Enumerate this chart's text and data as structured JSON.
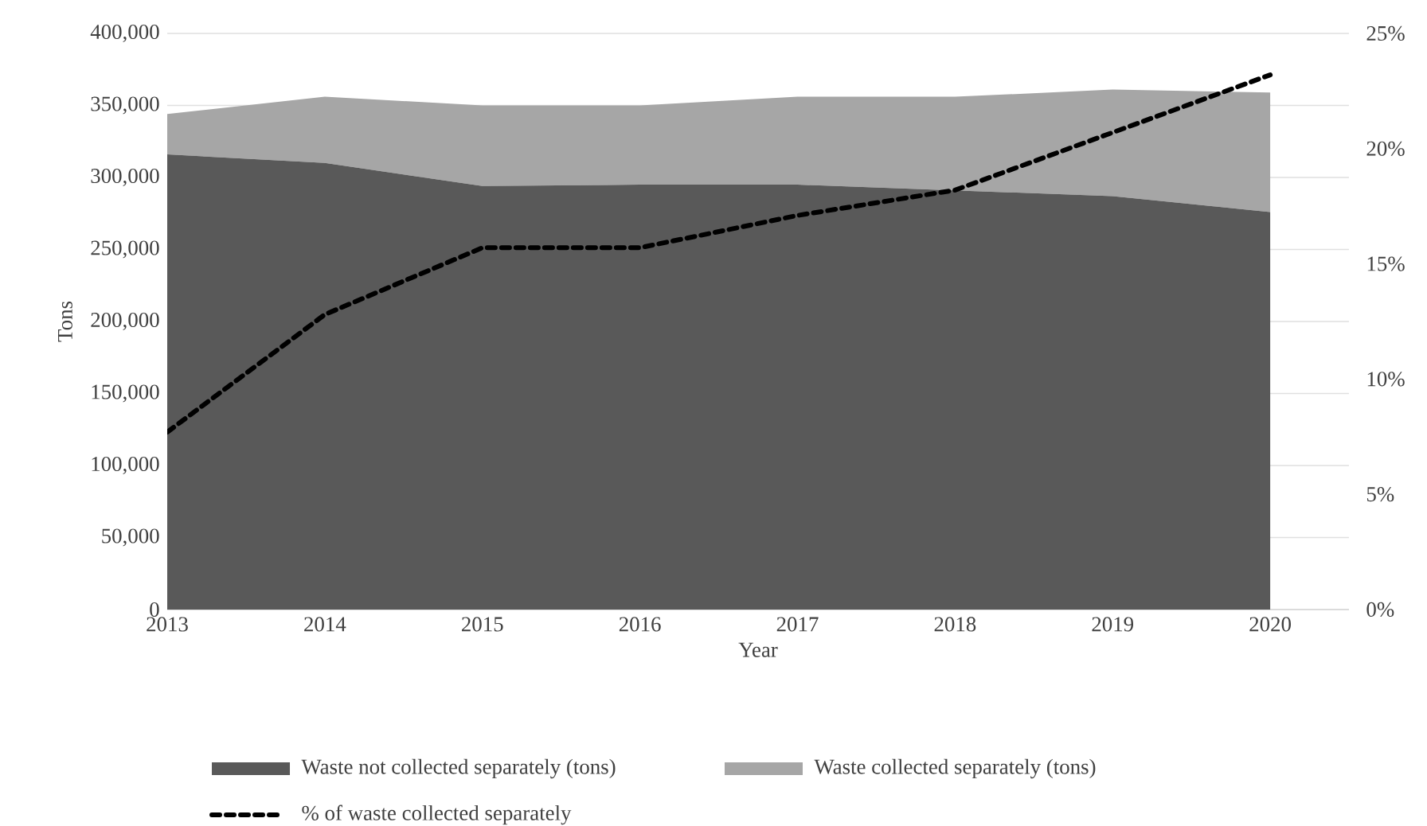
{
  "chart_data": {
    "type": "area",
    "stacked": true,
    "xlabel": "Year",
    "ylabel": "Tons",
    "categories": [
      "2013",
      "2014",
      "2015",
      "2016",
      "2017",
      "2018",
      "2019",
      "2020"
    ],
    "series": [
      {
        "name": "Waste not collected separately (tons)",
        "color": "#595959",
        "values": [
          316000,
          310000,
          294000,
          295000,
          295000,
          291000,
          287000,
          276000
        ]
      },
      {
        "name": "Waste collected separately (tons)",
        "color": "#a6a6a6",
        "values": [
          28000,
          46000,
          56000,
          55000,
          61000,
          65000,
          74000,
          83000
        ]
      },
      {
        "name": "% of waste collected separately",
        "type": "line",
        "axis": "y2",
        "line_style": "dashed",
        "color": "#000000",
        "values": [
          7.7,
          12.8,
          15.7,
          15.7,
          17.1,
          18.2,
          20.7,
          23.2
        ]
      }
    ],
    "ylim": [
      0,
      400000
    ],
    "yticks": [
      {
        "value": 0,
        "label": "0"
      },
      {
        "value": 50000,
        "label": "50,000"
      },
      {
        "value": 100000,
        "label": "100,000"
      },
      {
        "value": 150000,
        "label": "150,000"
      },
      {
        "value": 200000,
        "label": "200,000"
      },
      {
        "value": 250000,
        "label": "250,000"
      },
      {
        "value": 300000,
        "label": "300,000"
      },
      {
        "value": 350000,
        "label": "350,000"
      },
      {
        "value": 400000,
        "label": "400,000"
      }
    ],
    "y2lim": [
      0,
      25
    ],
    "y2ticks": [
      {
        "value": 0,
        "label": "0%"
      },
      {
        "value": 5,
        "label": "5%"
      },
      {
        "value": 10,
        "label": "10%"
      },
      {
        "value": 15,
        "label": "15%"
      },
      {
        "value": 20,
        "label": "20%"
      },
      {
        "value": 25,
        "label": "25%"
      }
    ],
    "grid": "y",
    "legend": "bottom"
  }
}
